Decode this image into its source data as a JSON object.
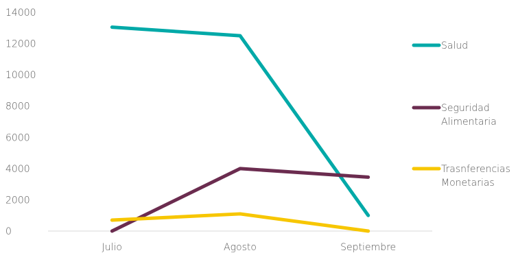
{
  "chart_data": {
    "type": "line",
    "title": "",
    "xlabel": "",
    "ylabel": "",
    "categories": [
      "Julio",
      "Agosto",
      "Septiembre"
    ],
    "ylim": [
      0,
      14000
    ],
    "yticks": [
      0,
      2000,
      4000,
      6000,
      8000,
      10000,
      12000,
      14000
    ],
    "grid": false,
    "legend_position": "right",
    "series": [
      {
        "name": "Salud",
        "label_lines": [
          "Salud"
        ],
        "color": "#00A9A8",
        "values": [
          13050,
          12500,
          1000
        ]
      },
      {
        "name": "Seguridad Alimentaria",
        "label_lines": [
          "Seguridad",
          "Alimentaria"
        ],
        "color": "#6B2C4F",
        "values": [
          0,
          4000,
          3450
        ]
      },
      {
        "name": "Trasnferencias Monetarias",
        "label_lines": [
          "Trasnferencias",
          "Monetarias"
        ],
        "color": "#F7C600",
        "values": [
          700,
          1100,
          0
        ]
      }
    ]
  }
}
